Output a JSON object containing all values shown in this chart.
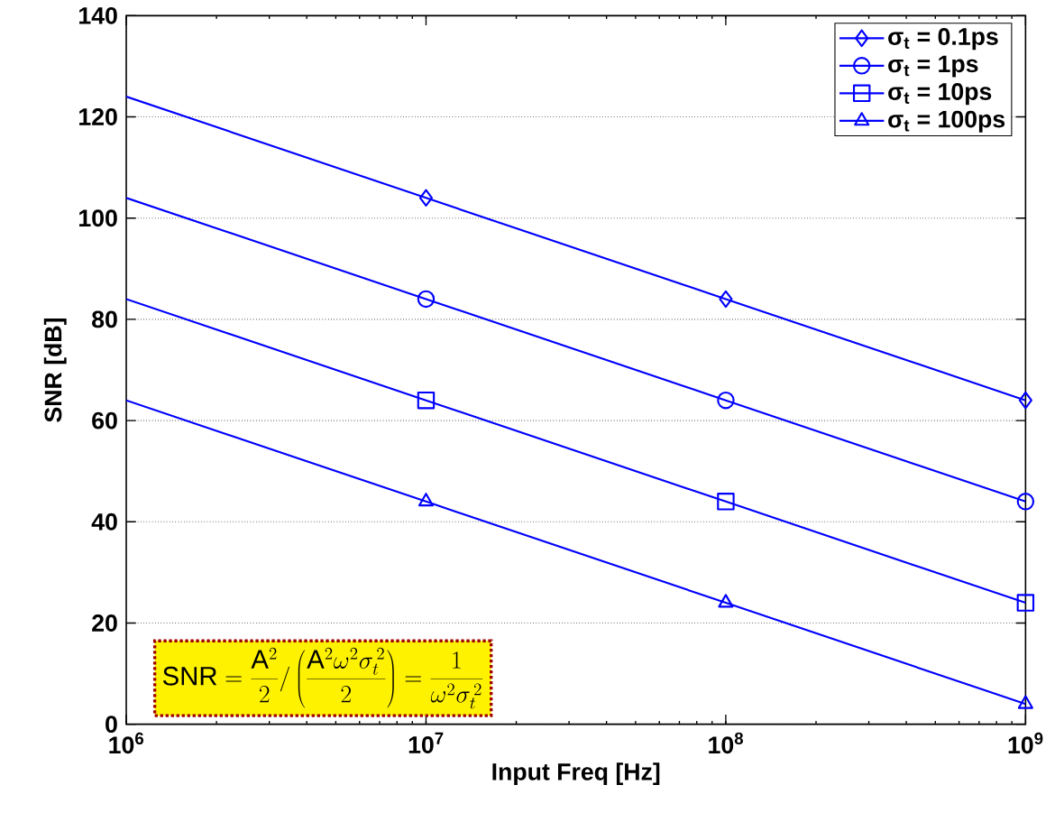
{
  "chart_data": {
    "type": "line",
    "xlabel": "Input Freq [Hz]",
    "ylabel": "SNR [dB]",
    "log": "x",
    "grid": "y",
    "legend": "top right",
    "line_style": "solid",
    "xlim": [
      1000000,
      1000000000
    ],
    "ylim": [
      0,
      140
    ],
    "xticks": [
      {
        "value": 1000000,
        "label": "10$^{6}$"
      },
      {
        "value": 10000000,
        "label": "10$^{7}$"
      },
      {
        "value": 100000000,
        "label": "10$^{8}$"
      },
      {
        "value": 1000000000,
        "label": "10$^{9}$"
      }
    ],
    "yticks": [
      0,
      20,
      40,
      60,
      80,
      100,
      120,
      140
    ],
    "x": [
      1000000,
      10000000,
      100000000,
      1000000000
    ],
    "series": [
      {
        "name": "σ$_{t}$ = 0.1ps",
        "color": "#0000ff",
        "marker": "diamond",
        "values": [
          124,
          104,
          84,
          64
        ]
      },
      {
        "name": "σ$_{t}$ = 1ps",
        "color": "#0000ff",
        "marker": "circle",
        "values": [
          104,
          84,
          64,
          44
        ]
      },
      {
        "name": "σ$_{t}$ = 10ps",
        "color": "#0000ff",
        "marker": "square",
        "values": [
          84,
          64,
          44,
          24
        ]
      },
      {
        "name": "σ$_{t}$ = 100ps",
        "color": "#0000ff",
        "marker": "triangle",
        "values": [
          64,
          44,
          24,
          4
        ]
      }
    ],
    "annotations": [
      {
        "text": "\\mathrm{SNR}=\\frac{\\mathrm{A}^2}{2}\\bigg/\\left(\\frac{\\mathrm{A}^2\\omega^2\\sigma_t^{\\,2}}{2}\\right)=\\frac{1}{\\omega^2\\sigma_t^{\\,2}}"
      }
    ]
  }
}
